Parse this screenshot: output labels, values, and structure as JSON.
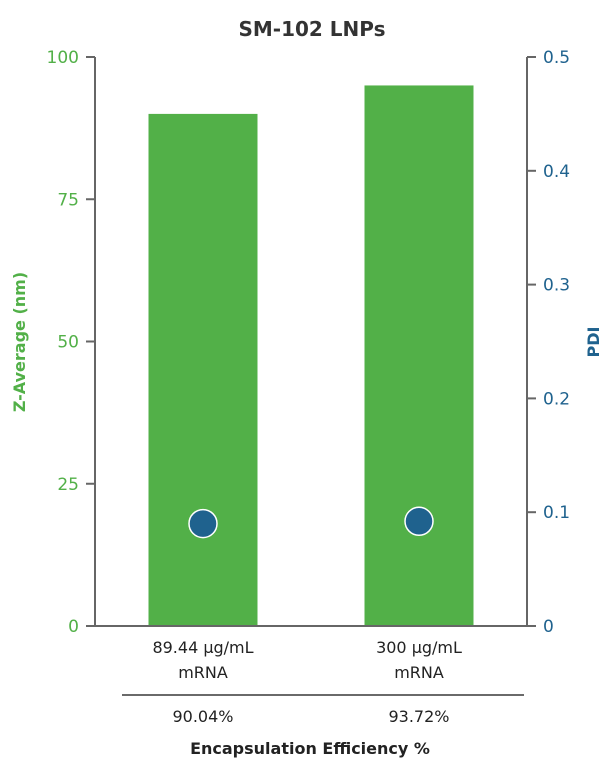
{
  "chart_data": {
    "type": "bar",
    "title": "SM-102 LNPs",
    "categories": [
      {
        "line1": "89.44 μg/mL",
        "line2": "mRNA"
      },
      {
        "line1": "300 μg/mL",
        "line2": "mRNA"
      }
    ],
    "series": [
      {
        "name": "Z-Average (nm)",
        "axis": "left",
        "kind": "bar",
        "values": [
          90,
          95
        ]
      },
      {
        "name": "PDI",
        "axis": "right",
        "kind": "point",
        "values": [
          0.09,
          0.092
        ]
      }
    ],
    "y_left": {
      "label": "Z-Average (nm)",
      "range": [
        0,
        100
      ],
      "ticks": [
        "0",
        "25",
        "50",
        "75",
        "100"
      ]
    },
    "y_right": {
      "label": "PDI",
      "range": [
        0,
        0.5
      ],
      "ticks": [
        "0",
        "0.1",
        "0.2",
        "0.3",
        "0.4",
        "0.5"
      ]
    },
    "encapsulation": {
      "title": "Encapsulation Efficiency %",
      "values": [
        "90.04%",
        "93.72%"
      ]
    },
    "grid": false,
    "colors": {
      "bar": "#52b048",
      "left_axis": "#52b048",
      "right_axis": "#1f628e",
      "point": "#1f628e",
      "axis_line": "#666666"
    }
  }
}
